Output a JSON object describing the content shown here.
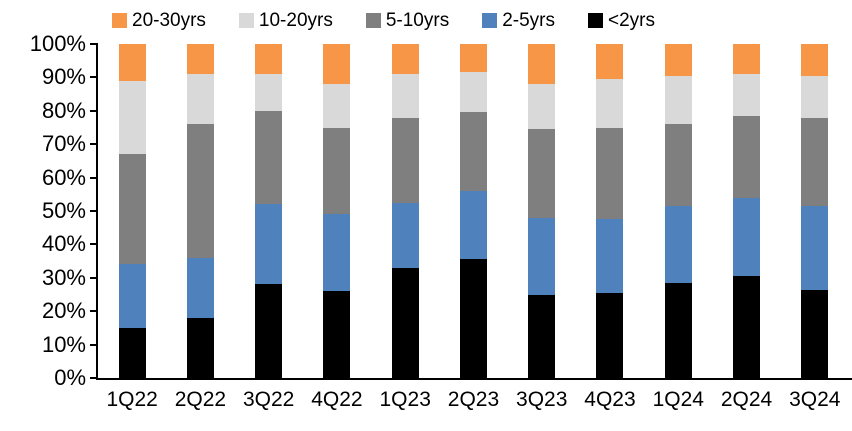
{
  "chart_data": {
    "type": "bar",
    "variant": "stacked-100-percent",
    "title": "",
    "xlabel": "",
    "ylabel": "",
    "ylim": [
      0,
      100
    ],
    "grid": false,
    "legend_position": "top",
    "categories": [
      "1Q22",
      "2Q22",
      "3Q22",
      "4Q22",
      "1Q23",
      "2Q23",
      "3Q23",
      "4Q23",
      "1Q24",
      "2Q24",
      "3Q24"
    ],
    "series": [
      {
        "name": "<2yrs",
        "color": "#000000",
        "values": [
          15,
          18,
          28,
          26,
          33,
          35.5,
          25,
          25.5,
          28.5,
          30.5,
          26.5
        ]
      },
      {
        "name": "2-5yrs",
        "color": "#4F81BD",
        "values": [
          19,
          18,
          24,
          23,
          19.5,
          20.5,
          23,
          22,
          23,
          23.5,
          25
        ]
      },
      {
        "name": "5-10yrs",
        "color": "#7F7F7F",
        "values": [
          33,
          40,
          28,
          26,
          25.5,
          23.5,
          26.5,
          27.5,
          24.5,
          24.5,
          26.5
        ]
      },
      {
        "name": "10-20yrs",
        "color": "#D9D9D9",
        "values": [
          22,
          15,
          11,
          13,
          13,
          12,
          13.5,
          14.5,
          14.5,
          12.5,
          12.5
        ]
      },
      {
        "name": "20-30yrs",
        "color": "#F79646",
        "values": [
          11,
          9,
          9,
          12,
          9,
          8.5,
          12,
          10.5,
          9.5,
          9,
          9.5
        ]
      }
    ],
    "legend_order": [
      "20-30yrs",
      "10-20yrs",
      "5-10yrs",
      "2-5yrs",
      "<2yrs"
    ],
    "y_ticks": [
      "100%",
      "90%",
      "80%",
      "70%",
      "60%",
      "50%",
      "40%",
      "30%",
      "20%",
      "10%",
      "0%"
    ],
    "axis_color": "#000000",
    "text_color": "#000000",
    "background_color": "#FFFFFF"
  }
}
